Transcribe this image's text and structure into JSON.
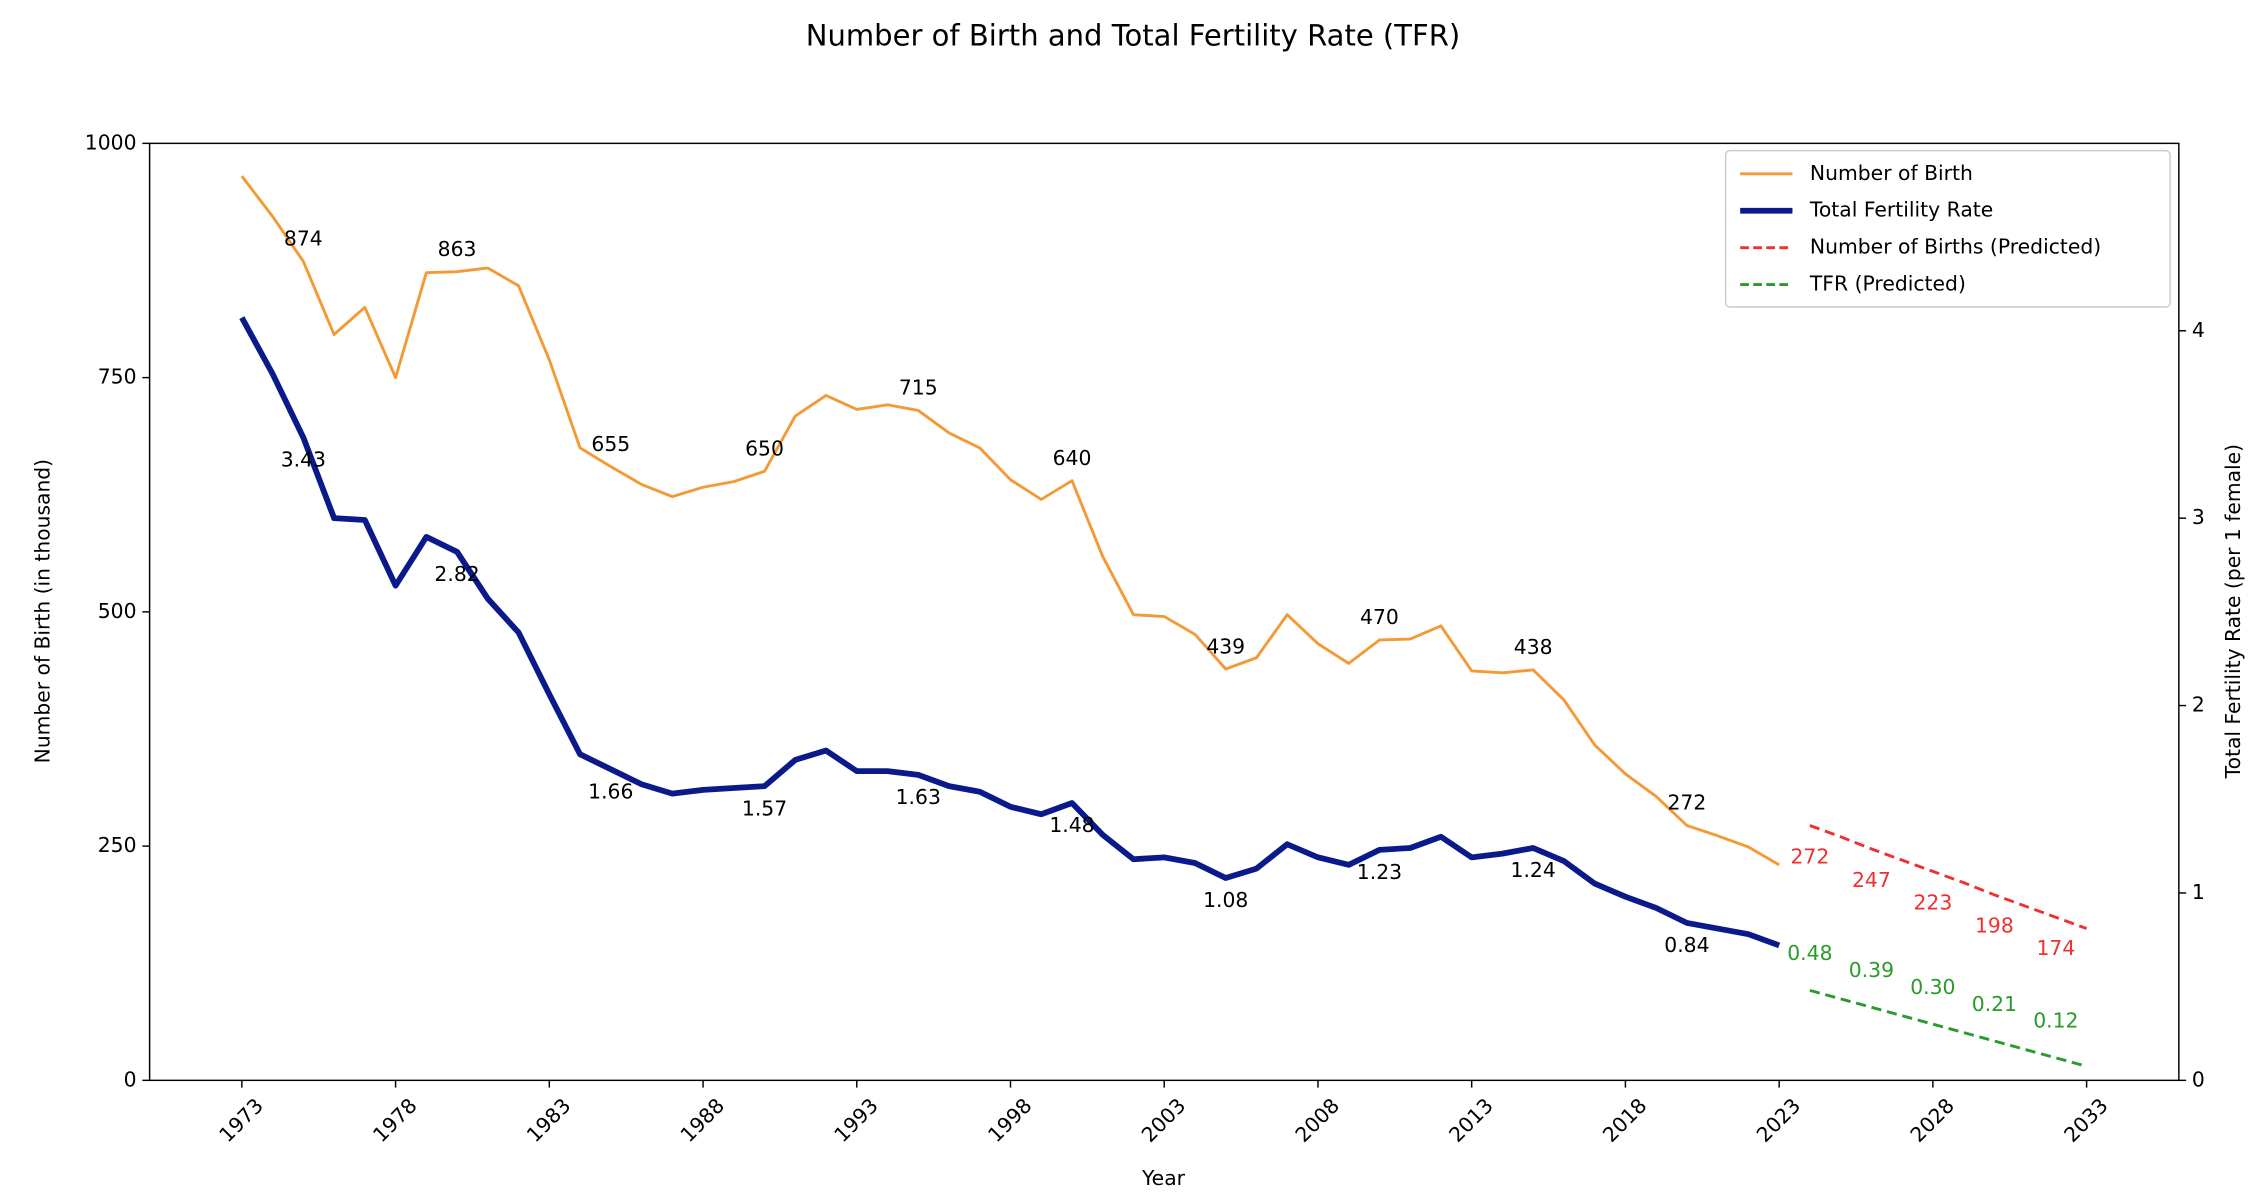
{
  "chart_data": {
    "type": "line",
    "title": "Number of Birth and Total Fertility Rate (TFR)",
    "x_label": "Year",
    "y_label": "Number of Birth (in thousand)",
    "y2_label": "Total Fertility Rate (per 1 female)",
    "xlim": [
      1970,
      2036
    ],
    "xticks": [
      1973,
      1978,
      1983,
      1988,
      1993,
      1998,
      2003,
      2008,
      2013,
      2018,
      2023,
      2028,
      2033
    ],
    "ylim": [
      0,
      1000
    ],
    "yticks": [
      0,
      250,
      500,
      750,
      1000
    ],
    "y2lim": [
      0,
      5
    ],
    "y2ticks": [
      0,
      1,
      2,
      3,
      4
    ],
    "legend": "upper right",
    "series": [
      {
        "name": "Number of Birth",
        "color": "#f39a37",
        "axis": "y",
        "x": [
          1973,
          1974,
          1975,
          1976,
          1977,
          1978,
          1979,
          1980,
          1981,
          1982,
          1983,
          1984,
          1985,
          1986,
          1987,
          1988,
          1989,
          1990,
          1991,
          1992,
          1993,
          1994,
          1995,
          1996,
          1997,
          1998,
          1999,
          2000,
          2001,
          2002,
          2003,
          2004,
          2005,
          2006,
          2007,
          2008,
          2009,
          2010,
          2011,
          2012,
          2013,
          2014,
          2015,
          2016,
          2017,
          2018,
          2019,
          2020,
          2021,
          2022,
          2023
        ],
        "values": [
          965,
          922,
          874,
          796,
          825,
          750,
          862,
          863,
          867,
          848,
          769,
          675,
          655,
          636,
          623,
          633,
          639,
          650,
          709,
          731,
          716,
          721,
          715,
          691,
          675,
          641,
          620,
          640,
          559,
          497,
          495,
          476,
          439,
          451,
          497,
          466,
          445,
          470,
          471,
          485,
          437,
          435,
          438,
          406,
          358,
          327,
          303,
          272,
          261,
          249,
          230
        ]
      },
      {
        "name": "Total Fertility Rate",
        "color": "#0a1a8a",
        "axis": "y2",
        "x": [
          1973,
          1974,
          1975,
          1976,
          1977,
          1978,
          1979,
          1980,
          1981,
          1982,
          1983,
          1984,
          1985,
          1986,
          1987,
          1988,
          1989,
          1990,
          1991,
          1992,
          1993,
          1994,
          1995,
          1996,
          1997,
          1998,
          1999,
          2000,
          2001,
          2002,
          2003,
          2004,
          2005,
          2006,
          2007,
          2008,
          2009,
          2010,
          2011,
          2012,
          2013,
          2014,
          2015,
          2016,
          2017,
          2018,
          2019,
          2020,
          2021,
          2022,
          2023
        ],
        "values": [
          4.07,
          3.77,
          3.43,
          3.0,
          2.99,
          2.64,
          2.9,
          2.82,
          2.57,
          2.39,
          2.06,
          1.74,
          1.66,
          1.58,
          1.53,
          1.55,
          1.56,
          1.57,
          1.71,
          1.76,
          1.65,
          1.65,
          1.63,
          1.57,
          1.54,
          1.46,
          1.42,
          1.48,
          1.31,
          1.18,
          1.19,
          1.16,
          1.08,
          1.13,
          1.26,
          1.19,
          1.15,
          1.23,
          1.24,
          1.3,
          1.19,
          1.21,
          1.24,
          1.17,
          1.05,
          0.98,
          0.92,
          0.84,
          0.81,
          0.78,
          0.72
        ]
      },
      {
        "name": "Number of Births (Predicted)",
        "color": "#f03030",
        "axis": "y",
        "x": [
          2024,
          2025,
          2026,
          2027,
          2028,
          2029,
          2030,
          2031,
          2032,
          2033
        ],
        "values": [
          272,
          260,
          247,
          235,
          223,
          211,
          198,
          186,
          174,
          162
        ]
      },
      {
        "name": "TFR (Predicted)",
        "color": "#2a9a2a",
        "axis": "y2",
        "x": [
          2024,
          2025,
          2026,
          2027,
          2028,
          2029,
          2030,
          2031,
          2032,
          2033
        ],
        "values": [
          0.48,
          0.435,
          0.39,
          0.345,
          0.3,
          0.255,
          0.21,
          0.165,
          0.12,
          0.075
        ],
        "value_labels": [
          "0.48",
          null,
          "0.39",
          null,
          "0.30",
          null,
          "0.21",
          null,
          "0.12",
          null
        ]
      }
    ]
  }
}
